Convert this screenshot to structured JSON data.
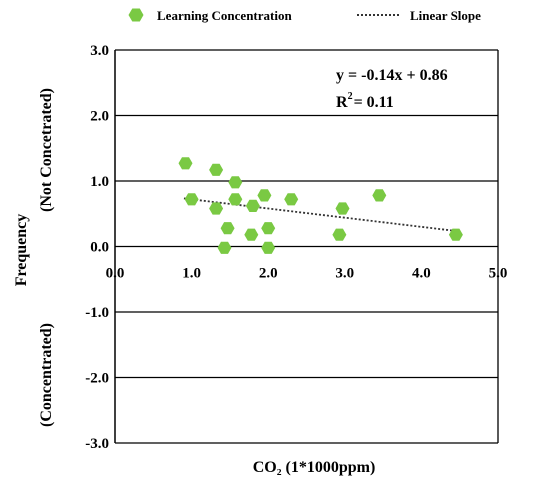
{
  "chart_data": {
    "type": "scatter",
    "legend": {
      "placement": "top",
      "entries": [
        {
          "label": "Learning Concentration",
          "marker": "hexagon"
        },
        {
          "label": "Linear Slope",
          "marker": "dotted-line"
        }
      ]
    },
    "xlabel": "CO₂ (1*1000ppm)",
    "ylabel": "Frequency",
    "annotations": {
      "upper": "(Not Concetrated)",
      "lower": "(Concentrated)",
      "equation": "y = -0.14x + 0.86",
      "r2_prefix": "R",
      "r2_sup": "2",
      "r2_suffix": "= 0.11"
    },
    "xlim": [
      0,
      5
    ],
    "ylim": [
      -3,
      3
    ],
    "x_ticks": [
      "0.0",
      "1.0",
      "2.0",
      "3.0",
      "4.0",
      "5.0"
    ],
    "y_ticks": [
      "3.0",
      "2.0",
      "1.0",
      "0.0",
      "-1.0",
      "-2.0",
      "-3.0"
    ],
    "grid": "horizontal",
    "series": [
      {
        "name": "Learning Concentration",
        "points": [
          [
            0.92,
            1.27
          ],
          [
            1.0,
            0.72
          ],
          [
            1.32,
            1.17
          ],
          [
            1.32,
            0.58
          ],
          [
            1.43,
            -0.02
          ],
          [
            1.47,
            0.28
          ],
          [
            1.57,
            0.98
          ],
          [
            1.57,
            0.72
          ],
          [
            1.78,
            0.18
          ],
          [
            1.8,
            0.62
          ],
          [
            1.95,
            0.78
          ],
          [
            2.0,
            0.28
          ],
          [
            2.0,
            -0.02
          ],
          [
            2.3,
            0.72
          ],
          [
            2.93,
            0.18
          ],
          [
            2.97,
            0.58
          ],
          [
            3.45,
            0.78
          ],
          [
            4.45,
            0.18
          ]
        ]
      }
    ],
    "trendline": {
      "name": "Linear Slope",
      "slope": -0.14,
      "intercept": 0.86,
      "x_start": 0.9,
      "x_end": 4.45
    },
    "colors": {
      "marker": "#7ac943",
      "axis": "#000000",
      "trend": "#333333"
    }
  }
}
